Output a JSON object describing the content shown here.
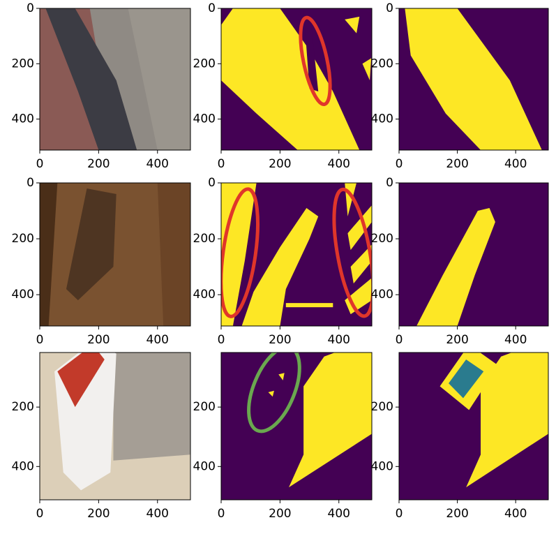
{
  "chart_data": [
    {
      "type": "image",
      "xlim": [
        0,
        512
      ],
      "ylim": [
        512,
        0
      ],
      "xticks": [
        0,
        200,
        400
      ],
      "yticks": [
        0,
        200,
        400
      ]
    },
    {
      "type": "image",
      "xlim": [
        0,
        512
      ],
      "ylim": [
        512,
        0
      ],
      "xticks": [
        0,
        200,
        400
      ],
      "yticks": [
        0,
        200,
        400
      ]
    },
    {
      "type": "image",
      "xlim": [
        0,
        512
      ],
      "ylim": [
        512,
        0
      ],
      "xticks": [
        0,
        200,
        400
      ],
      "yticks": [
        0,
        200,
        400
      ]
    },
    {
      "type": "image",
      "xlim": [
        0,
        512
      ],
      "ylim": [
        512,
        0
      ],
      "xticks": [
        0,
        200,
        400
      ],
      "yticks": [
        0,
        200,
        400
      ]
    },
    {
      "type": "image",
      "xlim": [
        0,
        512
      ],
      "ylim": [
        512,
        0
      ],
      "xticks": [
        0,
        200,
        400
      ],
      "yticks": [
        0,
        200,
        400
      ]
    },
    {
      "type": "image",
      "xlim": [
        0,
        512
      ],
      "ylim": [
        512,
        0
      ],
      "xticks": [
        0,
        200,
        400
      ],
      "yticks": [
        0,
        200,
        400
      ]
    },
    {
      "type": "image",
      "xlim": [
        0,
        512
      ],
      "ylim": [
        512,
        0
      ],
      "xticks": [
        0,
        200,
        400
      ],
      "yticks": [
        200,
        400
      ]
    },
    {
      "type": "image",
      "xlim": [
        0,
        512
      ],
      "ylim": [
        512,
        0
      ],
      "xticks": [
        0,
        200,
        400
      ],
      "yticks": [
        200,
        400
      ]
    },
    {
      "type": "image",
      "xlim": [
        0,
        512
      ],
      "ylim": [
        512,
        0
      ],
      "xticks": [
        0,
        200,
        400
      ],
      "yticks": [
        200,
        400
      ]
    }
  ]
}
